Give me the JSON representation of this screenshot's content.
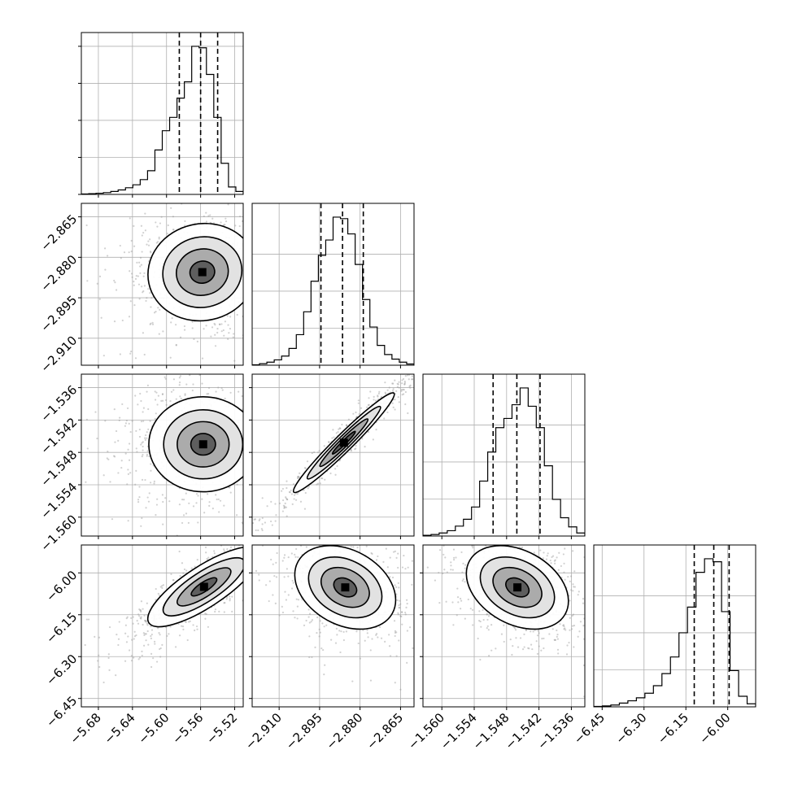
{
  "chart_data": {
    "type": "corner",
    "grid": true,
    "parameters": [
      {
        "range": [
          -5.7,
          -5.51
        ],
        "ticks": [
          -5.68,
          -5.64,
          -5.6,
          -5.56,
          -5.52
        ],
        "tick_labels": [
          "−5.68",
          "−5.64",
          "−5.60",
          "−5.56",
          "−5.52"
        ],
        "quantiles": [
          -5.585,
          -5.56,
          -5.54
        ],
        "hist": [
          0.3,
          0.5,
          0.8,
          1.2,
          2,
          3,
          4.5,
          6.5,
          10,
          16,
          30,
          43,
          52,
          65,
          76,
          100,
          99,
          81,
          52,
          21,
          5,
          2
        ],
        "hist_yticks_frac": [
          0.0,
          0.25,
          0.5,
          0.75,
          1.0
        ]
      },
      {
        "range": [
          -2.92,
          -2.86
        ],
        "ticks": [
          -2.91,
          -2.895,
          -2.88,
          -2.865
        ],
        "tick_labels": [
          "−2.910",
          "−2.895",
          "−2.880",
          "−2.865"
        ],
        "quantiles": [
          -2.8945,
          -2.8865,
          -2.8788
        ],
        "hist": [
          0.3,
          1,
          2,
          3.5,
          6,
          11,
          20,
          35,
          55,
          72,
          82,
          97,
          96,
          86,
          66,
          43,
          25,
          13,
          7,
          4,
          2,
          0.8
        ],
        "hist_yticks_frac": [
          0.0,
          0.25,
          0.5,
          0.75
        ]
      },
      {
        "range": [
          -1.5635,
          -1.5335
        ],
        "ticks": [
          -1.56,
          -1.554,
          -1.548,
          -1.542,
          -1.536
        ],
        "tick_labels": [
          "−1.560",
          "−1.554",
          "−1.548",
          "−1.542",
          "−1.536"
        ],
        "quantiles": [
          -1.5505,
          -1.5461,
          -1.5418
        ],
        "hist": [
          0.5,
          1,
          2,
          3.5,
          6.5,
          11,
          19,
          36,
          55,
          71,
          77,
          86,
          97,
          85,
          71,
          46,
          24,
          12,
          6,
          2
        ],
        "hist_yticks_frac": [
          0.0,
          0.25,
          0.5,
          0.75
        ]
      },
      {
        "range": [
          -6.48,
          -5.9
        ],
        "ticks": [
          -6.45,
          -6.3,
          -6.15,
          -6.0
        ],
        "tick_labels": [
          "−6.45",
          "−6.30",
          "−6.15",
          "−6.00"
        ],
        "quantiles": [
          -6.12,
          -6.05,
          -5.995
        ],
        "hist": [
          0.3,
          0.6,
          1.2,
          2.5,
          4,
          6,
          9,
          14,
          22,
          33,
          49,
          66,
          89,
          98,
          96,
          63,
          24,
          7,
          2
        ],
        "hist_yticks_frac": [
          0.0,
          0.25,
          0.5,
          0.75
        ]
      }
    ],
    "pairs": [
      {
        "row": 1,
        "col": 0,
        "center": [
          -5.558,
          -2.8855
        ],
        "sigma": [
          0.029,
          0.0082
        ],
        "rho": 0.05,
        "tail": [
          -0.7,
          0.4
        ]
      },
      {
        "row": 2,
        "col": 0,
        "center": [
          -5.557,
          -1.5465
        ],
        "sigma": [
          0.029,
          0.004
        ],
        "rho": 0.0,
        "tail": [
          -0.7,
          0.3
        ]
      },
      {
        "row": 2,
        "col": 1,
        "center": [
          -2.886,
          -1.5462
        ],
        "sigma": [
          0.0085,
          0.0042
        ],
        "rho": 0.97,
        "tail": [
          0.0,
          0.0
        ]
      },
      {
        "row": 3,
        "col": 0,
        "center": [
          -5.556,
          -6.05
        ],
        "sigma": [
          0.03,
          0.065
        ],
        "rho": 0.8,
        "tail": [
          -0.6,
          -0.4
        ]
      },
      {
        "row": 3,
        "col": 1,
        "center": [
          -2.8855,
          -6.052
        ],
        "sigma": [
          0.0085,
          0.068
        ],
        "rho": -0.3,
        "tail": [
          0.2,
          -0.5
        ]
      },
      {
        "row": 3,
        "col": 2,
        "center": [
          -1.546,
          -6.052
        ],
        "sigma": [
          0.0043,
          0.068
        ],
        "rho": -0.33,
        "tail": [
          0.2,
          -0.5
        ]
      }
    ]
  }
}
